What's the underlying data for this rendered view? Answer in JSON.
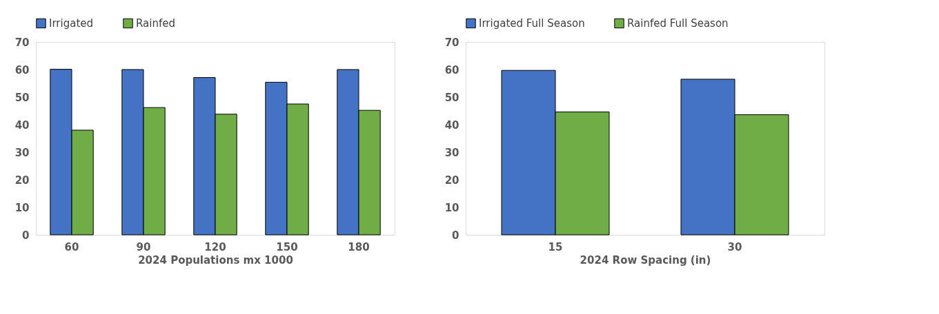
{
  "chart_data": [
    {
      "type": "bar",
      "xlabel": "2024 Populations mx 1000",
      "categories": [
        "60",
        "90",
        "120",
        "150",
        "180"
      ],
      "series": [
        {
          "name": "Irrigated",
          "color": "#4472c4",
          "values": [
            60.1,
            60,
            57.1,
            55.4,
            60
          ]
        },
        {
          "name": "Rainfed",
          "color": "#70ad47",
          "values": [
            38,
            46.2,
            43.8,
            47.5,
            45.2
          ]
        }
      ],
      "ylim": [
        0,
        70
      ],
      "yticks": [
        0,
        10,
        20,
        30,
        40,
        50,
        60,
        70
      ],
      "grid": false,
      "legend": "top"
    },
    {
      "type": "bar",
      "xlabel": "2024 Row Spacing (in)",
      "categories": [
        "15",
        "30"
      ],
      "series": [
        {
          "name": "Irrigated Full Season",
          "color": "#4472c4",
          "values": [
            59.7,
            56.5
          ]
        },
        {
          "name": "Rainfed Full Season",
          "color": "#70ad47",
          "values": [
            44.6,
            43.6
          ]
        }
      ],
      "ylim": [
        0,
        70
      ],
      "yticks": [
        0,
        10,
        20,
        30,
        40,
        50,
        60,
        70
      ],
      "grid": false,
      "legend": "top"
    }
  ]
}
